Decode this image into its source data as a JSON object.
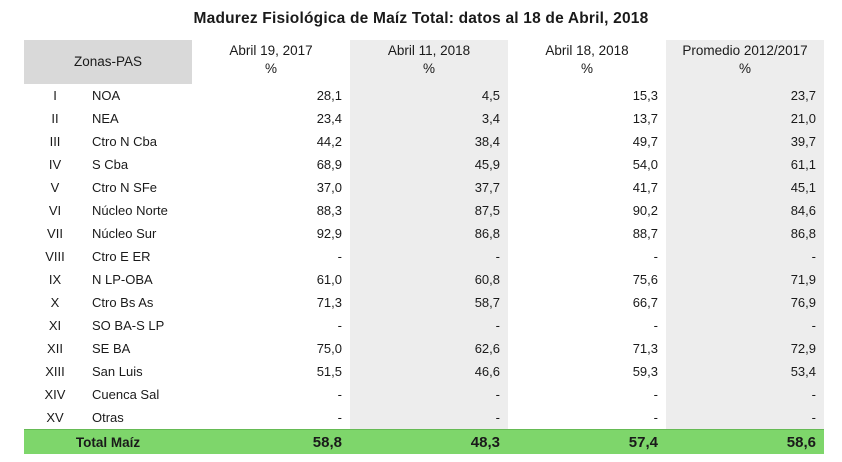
{
  "title": "Madurez Fisiológica de Maíz Total: datos al 18 de Abril, 2018",
  "header": {
    "zonas": "Zonas-PAS",
    "columns": [
      {
        "label": "Abril 19, 2017",
        "unit": "%"
      },
      {
        "label": "Abril 11, 2018",
        "unit": "%"
      },
      {
        "label": "Abril 18, 2018",
        "unit": "%"
      },
      {
        "label": "Promedio 2012/2017",
        "unit": "%"
      }
    ]
  },
  "rows": [
    {
      "roman": "I",
      "name": "NOA",
      "values": [
        "28,1",
        "4,5",
        "15,3",
        "23,7"
      ]
    },
    {
      "roman": "II",
      "name": "NEA",
      "values": [
        "23,4",
        "3,4",
        "13,7",
        "21,0"
      ]
    },
    {
      "roman": "III",
      "name": "Ctro N Cba",
      "values": [
        "44,2",
        "38,4",
        "49,7",
        "39,7"
      ]
    },
    {
      "roman": "IV",
      "name": "S Cba",
      "values": [
        "68,9",
        "45,9",
        "54,0",
        "61,1"
      ]
    },
    {
      "roman": "V",
      "name": "Ctro N SFe",
      "values": [
        "37,0",
        "37,7",
        "41,7",
        "45,1"
      ]
    },
    {
      "roman": "VI",
      "name": "Núcleo Norte",
      "values": [
        "88,3",
        "87,5",
        "90,2",
        "84,6"
      ]
    },
    {
      "roman": "VII",
      "name": "Núcleo Sur",
      "values": [
        "92,9",
        "86,8",
        "88,7",
        "86,8"
      ]
    },
    {
      "roman": "VIII",
      "name": "Ctro E ER",
      "values": [
        "-",
        "-",
        "-",
        "-"
      ]
    },
    {
      "roman": "IX",
      "name": "N LP-OBA",
      "values": [
        "61,0",
        "60,8",
        "75,6",
        "71,9"
      ]
    },
    {
      "roman": "X",
      "name": "Ctro Bs As",
      "values": [
        "71,3",
        "58,7",
        "66,7",
        "76,9"
      ]
    },
    {
      "roman": "XI",
      "name": "SO BA-S LP",
      "values": [
        "-",
        "-",
        "-",
        "-"
      ]
    },
    {
      "roman": "XII",
      "name": "SE BA",
      "values": [
        "75,0",
        "62,6",
        "71,3",
        "72,9"
      ]
    },
    {
      "roman": "XIII",
      "name": "San Luis",
      "values": [
        "51,5",
        "46,6",
        "59,3",
        "53,4"
      ]
    },
    {
      "roman": "XIV",
      "name": "Cuenca Sal",
      "values": [
        "-",
        "-",
        "-",
        "-"
      ]
    },
    {
      "roman": "XV",
      "name": "Otras",
      "values": [
        "-",
        "-",
        "-",
        "-"
      ]
    }
  ],
  "total": {
    "label": "Total Maíz",
    "values": [
      "58,8",
      "48,3",
      "57,4",
      "58,6"
    ]
  },
  "colors": {
    "total_row": "#7ed66b",
    "shade": "#ededed",
    "zonas_header": "#d9d9d9"
  }
}
